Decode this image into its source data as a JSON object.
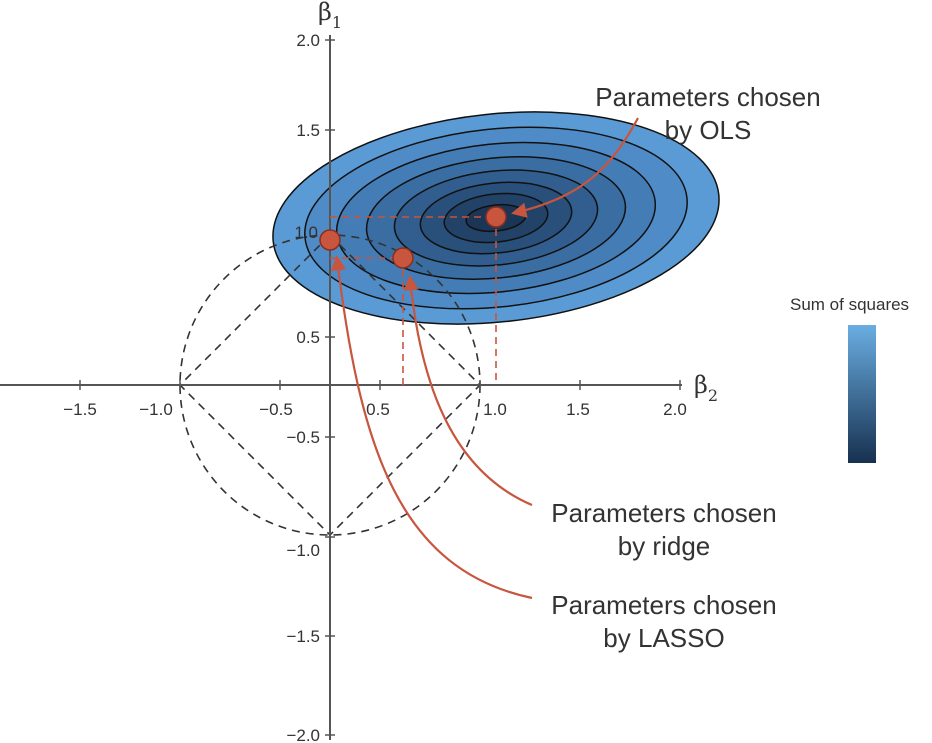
{
  "axes": {
    "x_symbol": "β",
    "x_subscript": "2",
    "y_symbol": "β",
    "y_subscript": "1",
    "x_ticks": [
      "−1.5",
      "−1.0",
      "−0.5",
      "0.5",
      "1.0",
      "1.5",
      "2.0"
    ],
    "y_ticks": [
      "2.0",
      "1.5",
      "1.0",
      "0.5",
      "−0.5",
      "−1.0",
      "−1.5",
      "−2.0"
    ]
  },
  "annotations": {
    "ols": [
      "Parameters chosen",
      "by OLS"
    ],
    "ridge": [
      "Parameters chosen",
      "by ridge"
    ],
    "lasso": [
      "Parameters chosen",
      "by LASSO"
    ]
  },
  "legend": {
    "title": "Sum of squares",
    "color_top": "#6aaee2",
    "color_bottom": "#17304f"
  },
  "colors": {
    "point": "#c8553d",
    "arrow": "#c8553d",
    "contour_outer": "#5b9bd5",
    "contour_inner": "#1b3556"
  },
  "points": {
    "ols": [
      1.1,
      1.07
    ],
    "ridge": [
      0.65,
      0.83
    ],
    "lasso": [
      0.0,
      0.95
    ]
  }
}
